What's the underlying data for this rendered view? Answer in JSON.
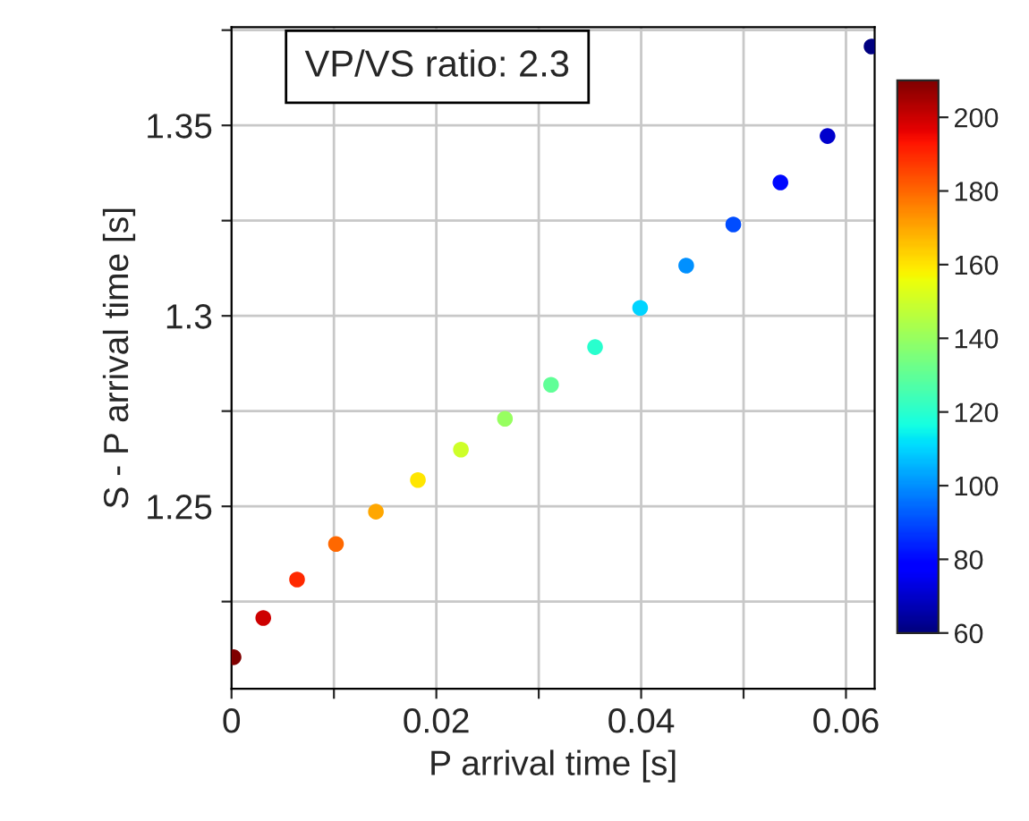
{
  "chart_data": {
    "type": "scatter",
    "xlabel": "P arrival time [s]",
    "ylabel": "S - P arrival time [s]",
    "annotations": [
      "VP/VS ratio: 2.3"
    ],
    "x": [
      0.0002,
      0.0031,
      0.0064,
      0.0102,
      0.0141,
      0.0182,
      0.0224,
      0.0267,
      0.0312,
      0.0355,
      0.0399,
      0.0444,
      0.049,
      0.0536,
      0.0582,
      0.0625
    ],
    "values": [
      1.2104,
      1.2207,
      1.2308,
      1.2401,
      1.2486,
      1.2569,
      1.2649,
      1.273,
      1.2819,
      1.2918,
      1.3021,
      1.3132,
      1.324,
      1.335,
      1.3472,
      1.3707
    ],
    "cvalues": [
      210,
      200,
      190,
      180,
      170,
      160,
      150,
      140,
      130,
      120,
      110,
      100,
      90,
      80,
      70,
      60
    ],
    "clim": [
      60,
      210
    ],
    "cticks": [
      60,
      80,
      100,
      120,
      140,
      160,
      180,
      200
    ],
    "xlim": [
      0,
      0.0628
    ],
    "ylim": [
      1.2021,
      1.3758
    ],
    "xticks": [
      0,
      {
        "value": 0.01,
        "label": null
      },
      {
        "value": 0.02,
        "label": "0.02"
      },
      {
        "value": 0.03,
        "label": null
      },
      {
        "value": 0.04,
        "label": "0.04"
      },
      {
        "value": 0.05,
        "label": null
      },
      {
        "value": 0.06,
        "label": "0.06"
      }
    ],
    "yticks": [
      {
        "value": 1.225,
        "label": null
      },
      1.25,
      {
        "value": 1.275,
        "label": null
      },
      {
        "value": 1.3,
        "label": "1.3"
      },
      {
        "value": 1.325,
        "label": null
      },
      1.35,
      {
        "value": 1.375,
        "label": null
      }
    ],
    "grid": true,
    "marker": "circle"
  }
}
